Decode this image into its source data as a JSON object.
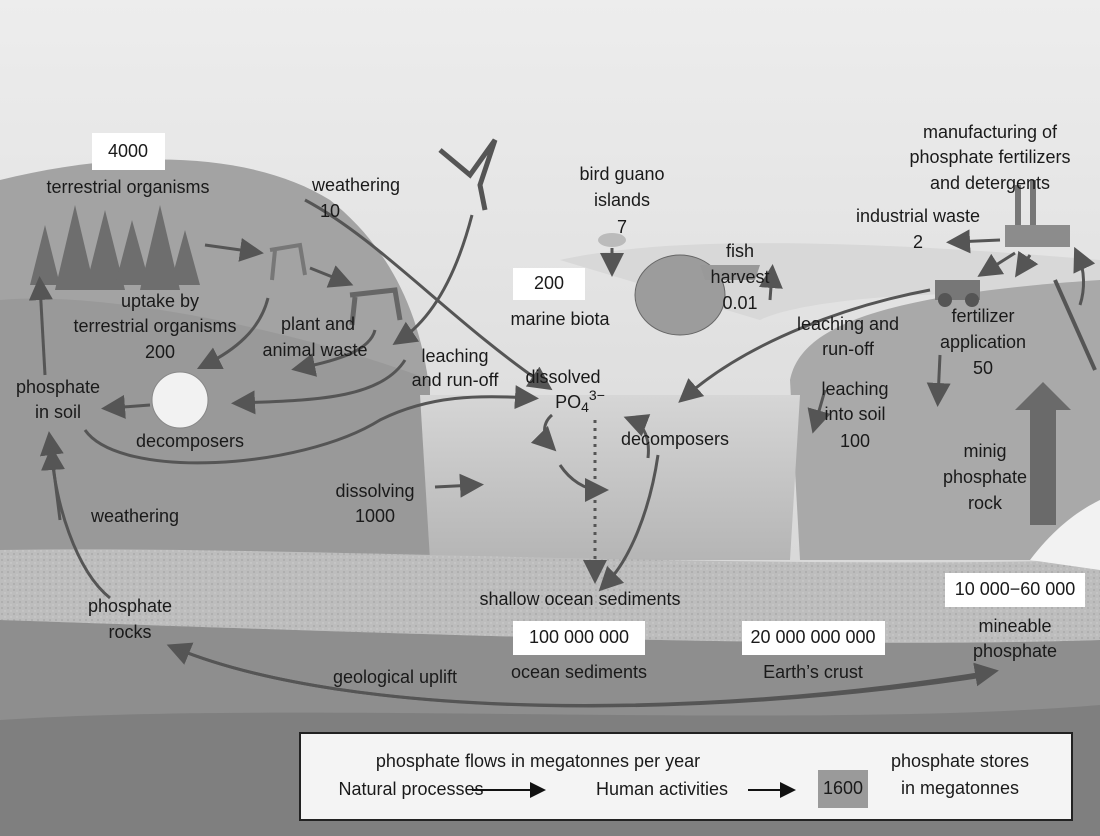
{
  "title_lines": [],
  "stores": [
    {
      "value": "4000",
      "label": [
        "terrestrial organisms"
      ]
    },
    {
      "value": "200",
      "label": [
        "marine biota"
      ]
    },
    {
      "value": "100 000 000",
      "label": [
        "ocean sediments"
      ]
    },
    {
      "value": "20 000 000 000",
      "label": [
        "Earth’s crust"
      ]
    },
    {
      "value": "10 000−60 000",
      "label": [
        "mineable",
        "phosphate"
      ]
    }
  ],
  "flows": [
    {
      "label": [
        "weathering"
      ],
      "value": "10"
    },
    {
      "label": [
        "bird guano",
        "islands"
      ],
      "value": "7"
    },
    {
      "label": [
        "industrial waste"
      ],
      "value": "2"
    },
    {
      "label": [
        "fish",
        "harvest"
      ],
      "value": "0.01"
    },
    {
      "label": [
        "uptake by",
        "terrestrial organisms"
      ],
      "value": "200"
    },
    {
      "label": [
        "fertilizer",
        "application"
      ],
      "value": "50"
    },
    {
      "label": [
        "leaching",
        "into soil"
      ],
      "value": "100"
    },
    {
      "label": [
        "dissolving"
      ],
      "value": "1000"
    }
  ],
  "processes": [
    {
      "label": [
        "manufacturing of",
        "phosphate fertilizers",
        "and detergents"
      ]
    },
    {
      "label": [
        "plant and",
        "animal waste"
      ]
    },
    {
      "label": [
        "leaching",
        "and run-off"
      ]
    },
    {
      "label": [
        "leaching and",
        "run-off"
      ]
    },
    {
      "label": [
        "phosphate",
        "in soil"
      ]
    },
    {
      "label": [
        "decomposers"
      ]
    },
    {
      "label": [
        "decomposers"
      ]
    },
    {
      "label": [
        "minig",
        "phosphate",
        "rock"
      ]
    },
    {
      "label": [
        "weathering"
      ]
    },
    {
      "label": [
        "shallow ocean sediments"
      ]
    },
    {
      "label": [
        "phosphate",
        "rocks"
      ]
    },
    {
      "label": [
        "geological uplift"
      ]
    }
  ],
  "dissolved": {
    "label": "dissolved",
    "formula": "PO",
    "subscript": "4",
    "superscript": "3−"
  },
  "legend": {
    "heading": "phosphate flows in megatonnes per year",
    "natural": "Natural processes",
    "human": "Human activities",
    "store_example": "1600",
    "store_label": [
      "phosphate stores",
      "in megatonnes"
    ]
  }
}
